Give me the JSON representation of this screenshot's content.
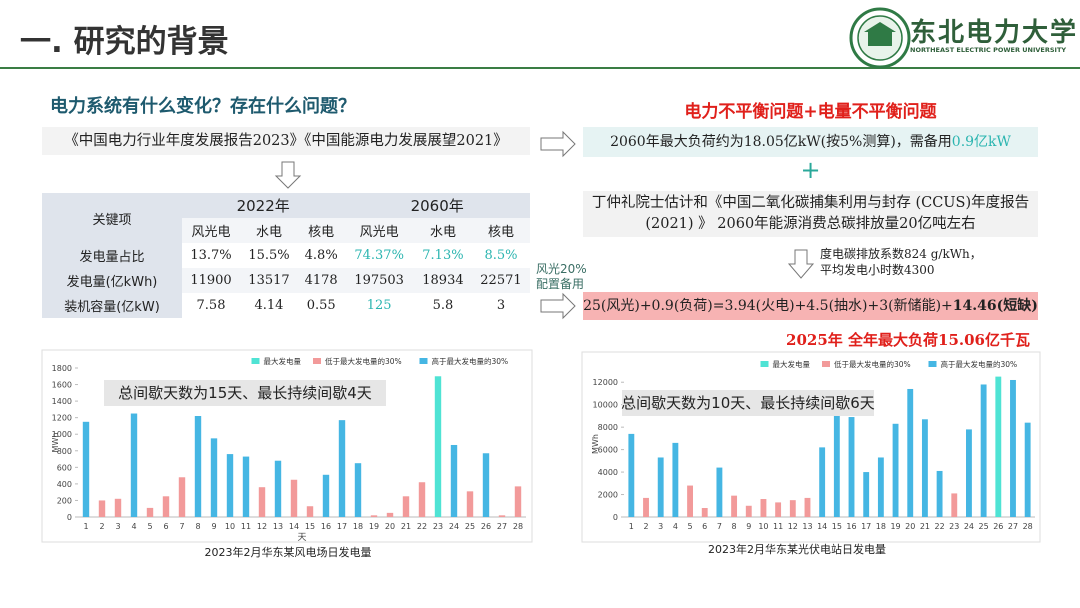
{
  "header": {
    "title": "一. 研究的背景",
    "logo_name": "东北电力大学",
    "logo_english": "NORTHEAST ELECTRIC POWER UNIVERSITY"
  },
  "left": {
    "question": "电力系统有什么变化？存在什么问题？",
    "reports": "《中国电力行业年度发展报告2023》《中国能源电力发展展望2021》",
    "side_note": [
      "风光20%",
      "配置备用"
    ]
  },
  "table": {
    "header": [
      "关键项",
      "2022年",
      "2060年"
    ],
    "subheader": [
      "风光电",
      "水电",
      "核电",
      "风光电",
      "水电",
      "核电"
    ],
    "rows": [
      [
        "发电量占比",
        "13.7%",
        "15.5%",
        "4.8%",
        "74.37%",
        "7.13%",
        "8.5%"
      ],
      [
        "发电量(亿kWh)",
        "11900",
        "13517",
        "4178",
        "197503",
        "18934",
        "22571"
      ],
      [
        "装机容量(亿kW)",
        "7.58",
        "4.14",
        "0.55",
        "125",
        "5.8",
        "3"
      ]
    ]
  },
  "right": {
    "title": "电力不平衡问题+电量不平衡问题",
    "max_load": "2060年最大负荷约为18.05亿kW(按5%测算)，需备用",
    "max_load_highlight": "0.9亿kW",
    "plus": "+",
    "ccus": "丁仲礼院士估计和《中国二氧化碳捕集利用与封存 (CCUS)年度报告(2021) 》 2060年能源消费总碳排放量20亿吨左右",
    "emission_note": [
      "度电碳排放系数824 g/kWh，",
      "平均发电小时数4300"
    ],
    "balance": "25(风光)+0.9(负荷)=3.94(火电)+4.5(抽水)+3(新储能)+",
    "balance_shortage": "14.46(短缺)",
    "max_load_2025": "2025年 全年最大负荷15.06亿千瓦"
  },
  "chart_data": [
    {
      "type": "bar",
      "title": "2023年2月华东某风电场日发电量",
      "annotation": "总间歇天数为15天、最长持续间歇4天",
      "xlabel": "天",
      "ylabel": "MWh",
      "categories": [
        "1",
        "2",
        "3",
        "4",
        "5",
        "6",
        "7",
        "8",
        "9",
        "10",
        "11",
        "12",
        "13",
        "14",
        "15",
        "16",
        "17",
        "18",
        "19",
        "20",
        "21",
        "22",
        "23",
        "24",
        "25",
        "26",
        "27",
        "28"
      ],
      "series": [
        {
          "name": "最大发电量",
          "color": "#4fe3d4",
          "values": [
            null,
            null,
            null,
            null,
            null,
            null,
            null,
            null,
            null,
            null,
            null,
            null,
            null,
            null,
            null,
            null,
            null,
            null,
            null,
            null,
            null,
            null,
            1700,
            null,
            null,
            null,
            null,
            null
          ]
        },
        {
          "name": "低于最大发电量的30%",
          "color": "#f29a9a",
          "values": [
            null,
            200,
            220,
            null,
            110,
            250,
            480,
            null,
            null,
            null,
            null,
            360,
            null,
            450,
            130,
            null,
            null,
            null,
            20,
            50,
            250,
            420,
            null,
            null,
            310,
            null,
            20,
            370
          ]
        },
        {
          "name": "高于最大发电量的30%",
          "color": "#45b6e3",
          "values": [
            1150,
            null,
            null,
            1250,
            null,
            null,
            null,
            1220,
            950,
            760,
            730,
            null,
            680,
            null,
            null,
            510,
            1170,
            650,
            null,
            null,
            null,
            null,
            null,
            870,
            null,
            770,
            null,
            null
          ]
        }
      ],
      "ylim": [
        0,
        1800
      ],
      "yticks": [
        0,
        200,
        400,
        600,
        800,
        1000,
        1200,
        1400,
        1600,
        1800
      ],
      "legend": "top-right"
    },
    {
      "type": "bar",
      "title": "2023年2月华东某光伏电站日发电量",
      "annotation": "总间歇天数为10天、最长持续间歇6天",
      "ylabel": "MWh",
      "categories": [
        "1",
        "2",
        "3",
        "4",
        "5",
        "6",
        "7",
        "8",
        "9",
        "10",
        "11",
        "12",
        "13",
        "14",
        "15",
        "16",
        "17",
        "18",
        "19",
        "20",
        "21",
        "22",
        "23",
        "24",
        "25",
        "26",
        "27",
        "28"
      ],
      "series": [
        {
          "name": "最大发电量",
          "color": "#4fe3d4",
          "values": [
            null,
            null,
            null,
            null,
            null,
            null,
            null,
            null,
            null,
            null,
            null,
            null,
            null,
            null,
            null,
            null,
            null,
            null,
            null,
            null,
            null,
            null,
            null,
            null,
            null,
            12500,
            null,
            null
          ]
        },
        {
          "name": "低于最大发电量的30%",
          "color": "#f29a9a",
          "values": [
            null,
            1700,
            null,
            null,
            2800,
            800,
            null,
            1900,
            1000,
            1600,
            1300,
            1500,
            1700,
            null,
            null,
            null,
            null,
            null,
            null,
            null,
            null,
            null,
            2100,
            null,
            null,
            null,
            null,
            null
          ]
        },
        {
          "name": "高于最大发电量的30%",
          "color": "#45b6e3",
          "values": [
            7400,
            null,
            5300,
            6600,
            null,
            null,
            4400,
            null,
            null,
            null,
            null,
            null,
            null,
            6200,
            9000,
            8900,
            4000,
            5300,
            8300,
            11400,
            8700,
            4100,
            null,
            7800,
            11800,
            null,
            12200,
            8400
          ]
        }
      ],
      "ylim": [
        0,
        13000
      ],
      "yticks": [
        0,
        2000,
        4000,
        6000,
        8000,
        10000,
        12000
      ],
      "legend": "top-right"
    }
  ]
}
